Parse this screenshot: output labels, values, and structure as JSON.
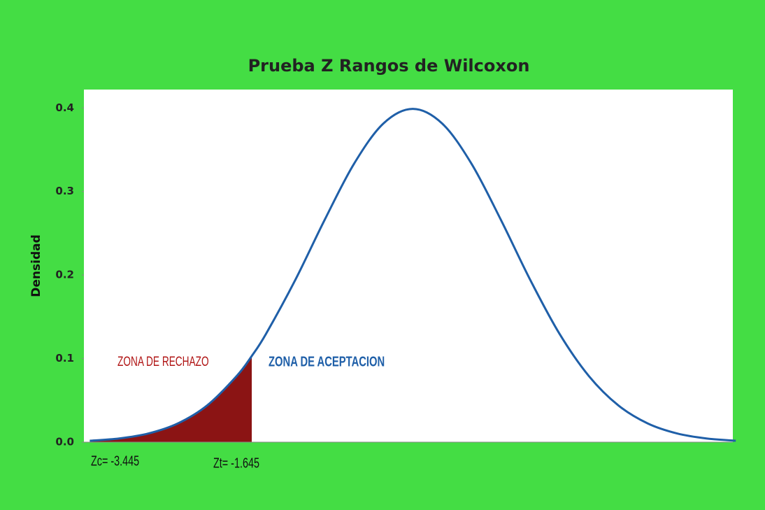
{
  "chart_data": {
    "type": "density",
    "title": "Prueba Z Rangos de Wilcoxon",
    "y_label": "Densidad",
    "x": [
      -3.3,
      -3.0,
      -2.7,
      -2.4,
      -2.1,
      -1.8,
      -1.645,
      -1.5,
      -1.2,
      -0.9,
      -0.6,
      -0.3,
      0,
      0.3,
      0.6,
      0.9,
      1.2,
      1.5,
      1.8,
      2.1,
      2.4,
      2.7,
      3.0,
      3.3
    ],
    "values": [
      0.0017,
      0.0044,
      0.0104,
      0.0224,
      0.044,
      0.079,
      0.1031,
      0.1295,
      0.1942,
      0.2661,
      0.3332,
      0.3814,
      0.3989,
      0.3814,
      0.3332,
      0.2661,
      0.1942,
      0.1295,
      0.079,
      0.044,
      0.0224,
      0.0104,
      0.0044,
      0.0017
    ],
    "color": "#1f5fa8",
    "area": {
      "x": [
        -3.3,
        -3.0,
        -2.7,
        -2.4,
        -2.1,
        -1.8,
        -1.645
      ],
      "values": [
        0.0017,
        0.0044,
        0.0104,
        0.0224,
        0.044,
        0.079,
        0.1031
      ],
      "color": "#8b1414"
    },
    "xlim": [
      -3.36,
      3.27
    ],
    "ylim": [
      0,
      0.422
    ],
    "yticks": [
      {
        "value": 0,
        "label": "0.0"
      },
      0.1,
      0.2,
      0.3,
      0.4
    ],
    "annotations": {
      "reject": "ZONA DE RECHAZO",
      "accept": "ZONA DE ACEPTACION",
      "zc": "Zc= -3.445",
      "zt": "Zt= -1.645"
    }
  }
}
